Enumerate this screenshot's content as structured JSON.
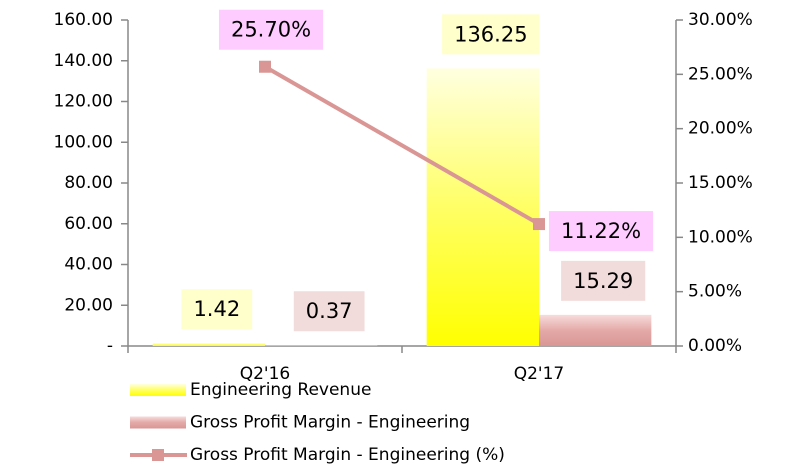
{
  "chart_data": {
    "type": "bar",
    "categories": [
      "Q2'16",
      "Q2'17"
    ],
    "series": [
      {
        "name": "Engineering Revenue",
        "color": "#ffff00",
        "values": [
          1.42,
          136.25
        ]
      },
      {
        "name": "Gross Profit Margin - Engineering",
        "color": "#d99694",
        "values": [
          0.37,
          15.29
        ]
      },
      {
        "name": "Gross Profit Margin - Engineering (%)",
        "color": "#d99694",
        "type": "line",
        "axis": "y2",
        "values": [
          25.7,
          11.22
        ],
        "value_labels": [
          "25.70%",
          "11.22%"
        ]
      }
    ],
    "ylim": [
      0,
      160
    ],
    "yticks": [
      {
        "value": 0,
        "label": "-"
      },
      {
        "value": 20,
        "label": "20.00"
      },
      {
        "value": 40,
        "label": "40.00"
      },
      {
        "value": 60,
        "label": "60.00"
      },
      {
        "value": 80,
        "label": "80.00"
      },
      {
        "value": 100,
        "label": "100.00"
      },
      {
        "value": 120,
        "label": "120.00"
      },
      {
        "value": 140,
        "label": "140.00"
      },
      {
        "value": 160,
        "label": "160.00"
      }
    ],
    "y2lim": [
      0,
      30
    ],
    "y2ticks": [
      {
        "value": 0,
        "label": "0.00%"
      },
      {
        "value": 5,
        "label": "5.00%"
      },
      {
        "value": 10,
        "label": "10.00%"
      },
      {
        "value": 15,
        "label": "15.00%"
      },
      {
        "value": 20,
        "label": "20.00%"
      },
      {
        "value": 25,
        "label": "25.00%"
      },
      {
        "value": 30,
        "label": "30.00%"
      }
    ],
    "grid": false
  }
}
